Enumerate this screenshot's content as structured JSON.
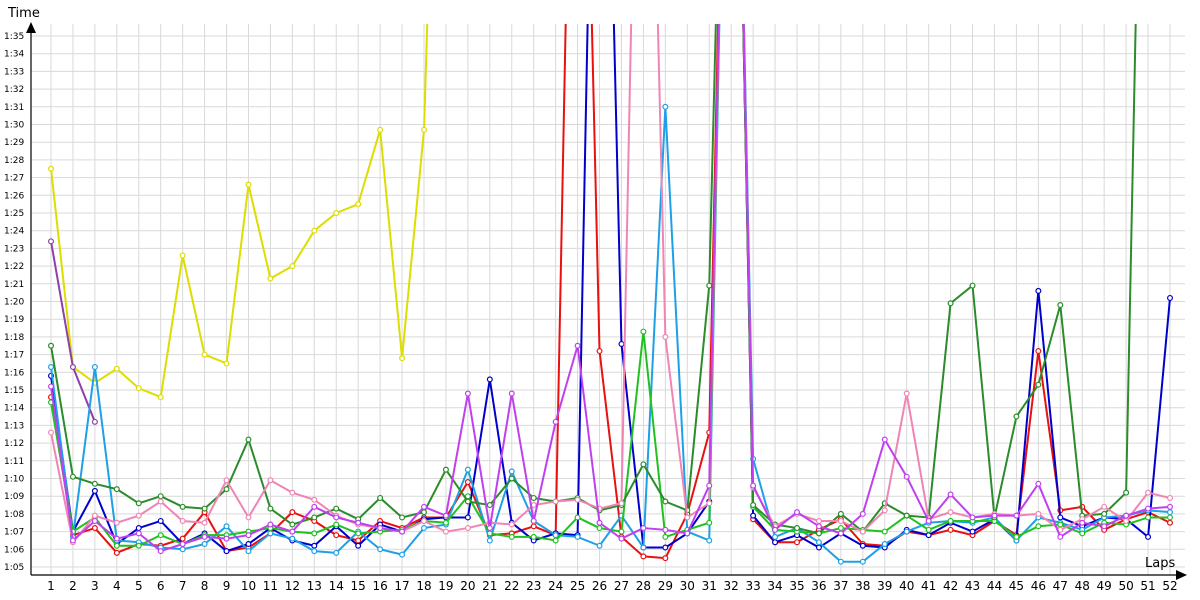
{
  "chart_data": {
    "type": "line",
    "xlabel": "Laps",
    "ylabel": "Time",
    "y_ticks": [
      "1:05",
      "1:06",
      "1:07",
      "1:08",
      "1:09",
      "1:10",
      "1:11",
      "1:12",
      "1:13",
      "1:14",
      "1:15",
      "1:16",
      "1:17",
      "1:18",
      "1:19",
      "1:20",
      "1:21",
      "1:22",
      "1:23",
      "1:24",
      "1:25",
      "1:26",
      "1:27",
      "1:28",
      "1:29",
      "1:30",
      "1:31",
      "1:32",
      "1:33",
      "1:34",
      "1:35"
    ],
    "ylim_seconds": [
      64,
      98
    ],
    "xlim": [
      0.5,
      52.5
    ],
    "grid": true,
    "x": [
      1,
      2,
      3,
      4,
      5,
      6,
      7,
      8,
      9,
      10,
      11,
      12,
      13,
      14,
      15,
      16,
      17,
      18,
      19,
      20,
      21,
      22,
      23,
      24,
      25,
      26,
      27,
      28,
      29,
      30,
      31,
      32,
      33,
      34,
      35,
      36,
      37,
      38,
      39,
      40,
      41,
      42,
      43,
      44,
      45,
      46,
      47,
      48,
      49,
      50,
      51,
      52
    ],
    "series": [
      {
        "color": "#dddd00",
        "values": [
          87.5,
          76.3,
          75.4,
          76.2,
          75.1,
          74.6,
          82.6,
          77.0,
          76.5,
          86.6,
          81.3,
          82.0,
          84.0,
          85.0,
          85.5,
          89.7,
          76.8,
          89.7,
          130,
          null,
          null,
          null,
          null,
          null,
          null,
          null,
          null,
          null,
          null,
          null,
          null,
          null,
          null,
          null,
          null,
          null,
          null,
          null,
          null,
          null,
          null,
          null,
          null,
          null,
          null,
          null,
          null,
          null,
          null,
          null,
          null,
          null
        ]
      },
      {
        "color": "#8e3fa8",
        "values": [
          83.4,
          76.3,
          73.2,
          null,
          null,
          null,
          null,
          null,
          null,
          null,
          null,
          null,
          null,
          null,
          null,
          null,
          null,
          null,
          null,
          null,
          null,
          null,
          null,
          null,
          null,
          null,
          null,
          null,
          null,
          null,
          null,
          null,
          null,
          null,
          null,
          null,
          null,
          null,
          null,
          null,
          null,
          null,
          null,
          null,
          null,
          null,
          null,
          null,
          null,
          null,
          null,
          null
        ]
      },
      {
        "color": "#e81010",
        "values": [
          74.6,
          66.8,
          67.2,
          65.8,
          66.3,
          66.2,
          66.6,
          68.1,
          65.9,
          66.1,
          66.9,
          68.1,
          67.6,
          66.8,
          66.5,
          67.6,
          67.2,
          67.8,
          67.8,
          69.8,
          66.8,
          66.9,
          67.3,
          66.8,
          130,
          77.2,
          66.7,
          65.6,
          65.5,
          68.0,
          72.6,
          130,
          67.7,
          66.4,
          66.4,
          67.1,
          67.7,
          66.3,
          66.2,
          67.0,
          66.8,
          67.1,
          66.8,
          67.6,
          66.8,
          77.2,
          68.2,
          68.4,
          67.1,
          67.7,
          68.1,
          67.5
        ]
      },
      {
        "color": "#0000cc",
        "values": [
          75.8,
          67.0,
          69.3,
          66.3,
          67.2,
          67.6,
          66.3,
          66.9,
          65.9,
          66.3,
          67.2,
          66.5,
          66.2,
          67.3,
          66.2,
          67.4,
          67.0,
          67.7,
          67.8,
          67.8,
          75.6,
          67.5,
          66.5,
          66.9,
          66.8,
          130,
          77.6,
          66.1,
          66.1,
          66.9,
          68.7,
          130,
          67.9,
          66.4,
          66.8,
          66.1,
          66.9,
          66.2,
          66.1,
          67.1,
          66.8,
          67.5,
          67.0,
          67.7,
          66.5,
          80.6,
          67.8,
          67.3,
          67.8,
          67.7,
          66.7,
          80.2
        ]
      },
      {
        "color": "#1ea0e6",
        "values": [
          76.3,
          66.7,
          76.3,
          66.5,
          66.4,
          66.1,
          66.0,
          66.3,
          67.3,
          65.9,
          66.9,
          66.6,
          65.9,
          65.8,
          67.0,
          66.0,
          65.7,
          67.2,
          67.4,
          70.5,
          66.5,
          70.4,
          67.6,
          66.8,
          66.7,
          66.2,
          67.9,
          66.1,
          91.0,
          67.0,
          66.5,
          130,
          71.1,
          66.7,
          67.2,
          66.4,
          65.3,
          65.3,
          66.3,
          67.0,
          67.5,
          67.6,
          67.5,
          67.8,
          66.5,
          67.8,
          67.5,
          67.1,
          67.8,
          67.9,
          68.2,
          68.1
        ]
      },
      {
        "color": "#1fc21f",
        "values": [
          74.3,
          67.0,
          67.8,
          66.2,
          66.2,
          66.8,
          66.3,
          66.8,
          66.8,
          67.0,
          67.2,
          67.0,
          66.9,
          67.4,
          66.9,
          67.0,
          67.1,
          67.6,
          67.5,
          69.0,
          66.9,
          66.7,
          66.7,
          66.5,
          67.8,
          67.2,
          67.0,
          78.3,
          66.7,
          67.1,
          67.5,
          130,
          68.4,
          67.1,
          67.0,
          66.9,
          67.2,
          67.1,
          67.0,
          67.9,
          67.1,
          67.6,
          67.6,
          67.6,
          66.7,
          67.3,
          67.4,
          66.9,
          67.5,
          67.4,
          67.8,
          67.8
        ]
      },
      {
        "color": "#2a8c2a",
        "values": [
          77.5,
          70.1,
          69.7,
          69.4,
          68.6,
          69.0,
          68.4,
          68.3,
          69.4,
          72.2,
          68.3,
          67.4,
          67.8,
          68.3,
          67.7,
          68.9,
          67.8,
          68.1,
          70.5,
          68.7,
          68.5,
          70.0,
          68.9,
          68.7,
          68.9,
          68.2,
          68.5,
          70.8,
          68.7,
          68.2,
          80.9,
          130,
          68.5,
          67.4,
          67.2,
          66.9,
          68.0,
          67.0,
          68.6,
          67.9,
          67.8,
          79.9,
          80.9,
          67.8,
          73.5,
          75.3,
          79.8,
          67.9,
          68.0,
          69.2,
          130,
          null
        ]
      },
      {
        "color": "#f085b5",
        "values": [
          72.6,
          66.4,
          67.9,
          67.5,
          67.9,
          68.7,
          67.6,
          67.5,
          69.9,
          67.8,
          69.9,
          69.2,
          68.8,
          67.9,
          67.4,
          67.2,
          67.0,
          67.6,
          67.0,
          67.2,
          67.5,
          67.4,
          68.5,
          68.7,
          68.8,
          68.3,
          68.6,
          130,
          78.0,
          67.8,
          68.6,
          130,
          69.5,
          67.3,
          68.0,
          67.6,
          67.6,
          67.0,
          68.2,
          74.8,
          67.7,
          68.1,
          67.8,
          68.0,
          67.9,
          68.0,
          67.1,
          67.7,
          68.4,
          67.6,
          69.2,
          68.9
        ]
      },
      {
        "color": "#c040f0",
        "values": [
          75.2,
          66.5,
          67.6,
          66.6,
          66.9,
          65.9,
          66.3,
          66.7,
          66.6,
          66.8,
          67.4,
          67.0,
          68.4,
          67.8,
          67.5,
          67.2,
          67.0,
          68.4,
          67.9,
          74.8,
          67.2,
          74.8,
          67.6,
          73.2,
          77.5,
          67.5,
          66.6,
          67.2,
          67.1,
          66.9,
          69.6,
          130,
          69.6,
          67.1,
          68.1,
          67.3,
          66.9,
          68.0,
          72.2,
          70.1,
          67.6,
          69.1,
          67.8,
          67.9,
          67.9,
          69.7,
          66.7,
          67.5,
          67.3,
          67.9,
          68.3,
          68.4
        ]
      }
    ]
  }
}
